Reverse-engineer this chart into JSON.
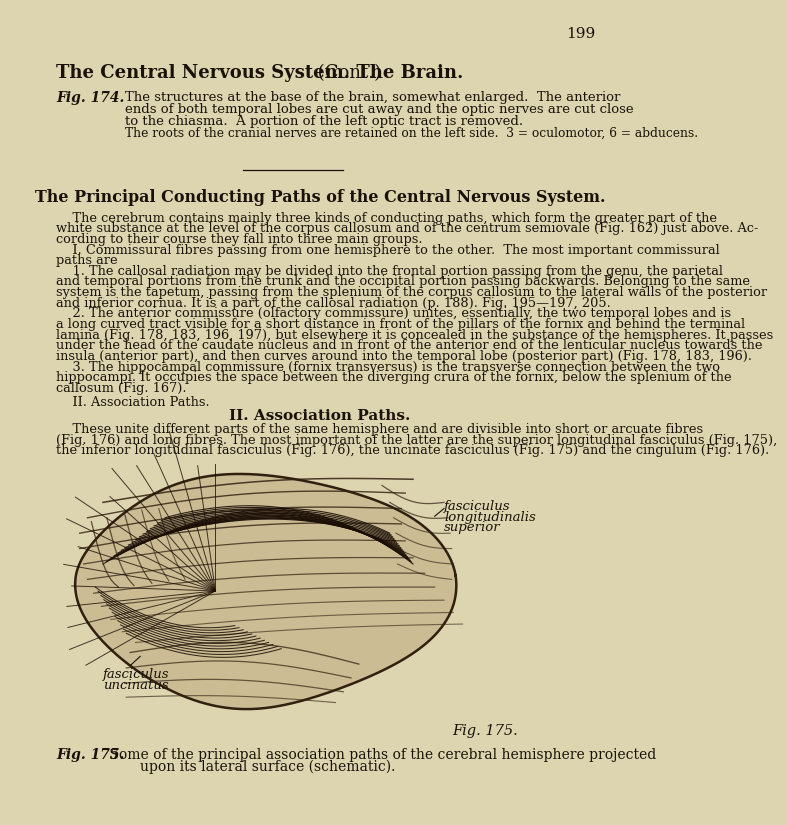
{
  "bg_color": "#ddd5b0",
  "page_number": "199",
  "main_title_bold": "The Central Nervous System. The Brain.",
  "main_title_normal": " (Cont.)",
  "fig174_label": "Fig. 174.",
  "fig174_line1": "The structures at the base of the brain, somewhat enlarged.  The anterior",
  "fig174_line2": "ends of both temporal lobes are cut away and the optic nerves are cut close",
  "fig174_line3": "to the chiasma.  A portion of the left optic tract is removed.",
  "fig174_line4": "The roots of the cranial nerves are retained on the left side.  3 = oculomotor, 6 = abducens.",
  "section_title": "The Principal Conducting Paths of the Central Nervous System.",
  "para1": "    The cerebrum contains mainly three kinds of conducting paths, which form the greater part of the white substance at the level of the corpus callosum and of the centrum semiovale (Fig. 162) just above. Ac­cording to their course they fall into three main groups.",
  "para2": "    I. Commissural fibres passing from one hemisphere to the other.  The most important commissural paths are",
  "para3": "    1. The callosal radiation may be divided into the frontal portion passing from the genu, the parietal and temporal portions from the trunk and the occipital portion passing backwards. Belonging to the same system is the tapetum, passing from the splenium of the corpus callosum to the lateral walls of the posterior and inferior cornua. It is a part of the callosal radiation (p. 188). Fig. 195—197, 205.",
  "para4": "    2. The anterior commissure (olfactory commissure) unites, essentially, the two temporal lobes and is a long curved tract visible for a short distance in front of the pillars of the fornix and behind the terminal lamina (Fig. 178, 183, 196, 197), but elsewhere it is concealed in the substance of the hemispheres. It passes under the head of the caudate nucleus and in front of the anterior end of the lenticular nucleus towards the insula (anterior part), and then curves around into the temporal lobe (posterior part) (Fig. 178, 183, 196).",
  "para5": "    3. The hippocampal commissure (fornix transversus) is the transverse connection between the two hippocampi. It occupies the space between the diverging crura of the fornix, below the splenium of the callosum (Fig. 167).",
  "para6_head": "II. Association Paths.",
  "para6": "    These unite different parts of the same hemisphere and are divisible into short or arcuate fibres (Fig. 176) and long fibres. The most important of the latter are the superior longitudinal fasciculus (Fig. 175), the inferior longitudinal fasciculus (Fig. 176), the uncinate fasciculus (Fig. 175) and the cingulum (Fig. 176).",
  "fig175_label_italic": "Fig. 175.",
  "label1_l1": "fasciculus",
  "label1_l2": "longitudinalis",
  "label1_l3": "superior",
  "label2_l1": "fasciculus",
  "label2_l2": "uncinatus",
  "fig175_cap_bold": "Fig. 175.",
  "fig175_cap_text": " Some of the principal association paths of the cerebral hemisphere projected",
  "fig175_cap_text2": "        upon its lateral surface (schematic).",
  "text_color": "#1a1208",
  "gyri_color": "#302010",
  "fiber_color": "#1a0e05",
  "brain_fill": "#b8a880",
  "brain_fill2": "#c8b890"
}
